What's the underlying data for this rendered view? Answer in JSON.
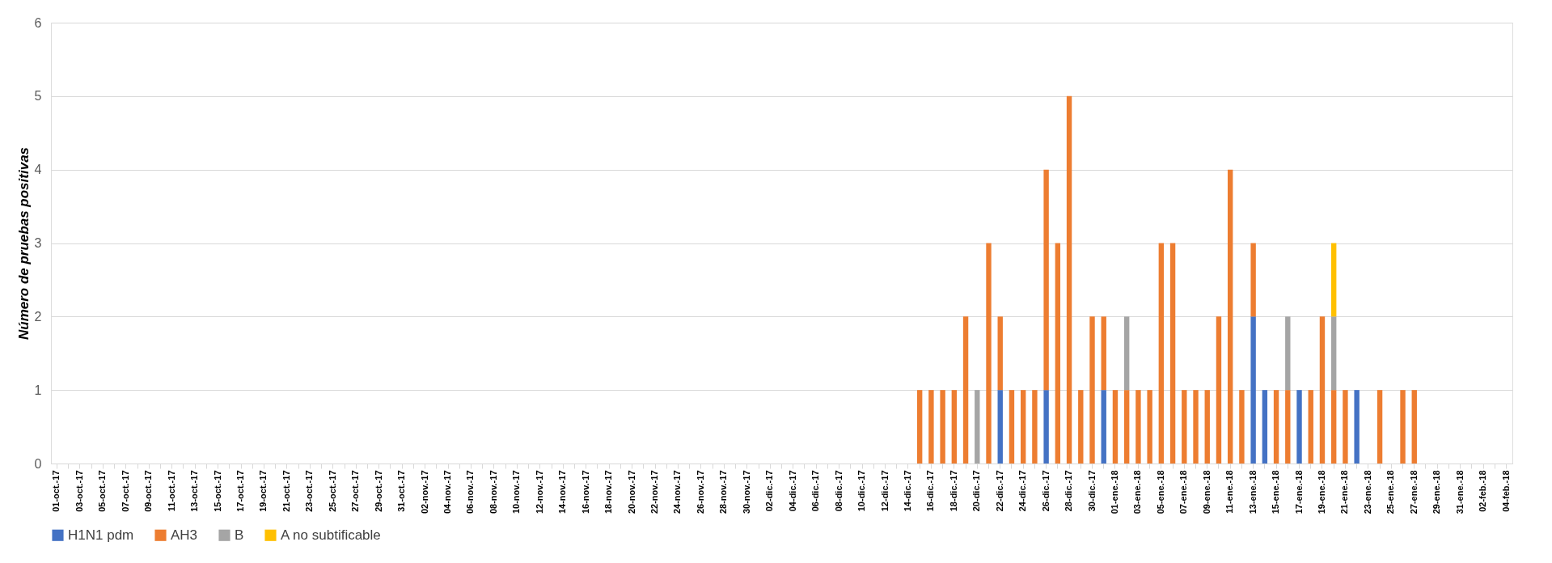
{
  "chart_data": {
    "type": "bar",
    "stacked": true,
    "ylabel": "Número de pruebas positivas",
    "categories": [
      "01-oct.-17",
      null,
      "03-oct.-17",
      null,
      "05-oct.-17",
      null,
      "07-oct.-17",
      null,
      "09-oct.-17",
      null,
      "11-oct.-17",
      null,
      "13-oct.-17",
      null,
      "15-oct.-17",
      null,
      "17-oct.-17",
      null,
      "19-oct.-17",
      null,
      "21-oct.-17",
      null,
      "23-oct.-17",
      null,
      "25-oct.-17",
      null,
      "27-oct.-17",
      null,
      "29-oct.-17",
      null,
      "31-oct.-17",
      null,
      "02-nov.-17",
      null,
      "04-nov.-17",
      null,
      "06-nov.-17",
      null,
      "08-nov.-17",
      null,
      "10-nov.-17",
      null,
      "12-nov.-17",
      null,
      "14-nov.-17",
      null,
      "16-nov.-17",
      null,
      "18-nov.-17",
      null,
      "20-nov.-17",
      null,
      "22-nov.-17",
      null,
      "24-nov.-17",
      null,
      "26-nov.-17",
      null,
      "28-nov.-17",
      null,
      "30-nov.-17",
      null,
      "02-dic.-17",
      null,
      "04-dic.-17",
      null,
      "06-dic.-17",
      null,
      "08-dic.-17",
      null,
      "10-dic.-17",
      null,
      "12-dic.-17",
      null,
      "14-dic.-17",
      null,
      "16-dic.-17",
      null,
      "18-dic.-17",
      null,
      "20-dic.-17",
      null,
      "22-dic.-17",
      null,
      "24-dic.-17",
      null,
      "26-dic.-17",
      null,
      "28-dic.-17",
      null,
      "30-dic.-17",
      null,
      "01-ene.-18",
      null,
      "03-ene.-18",
      null,
      "05-ene.-18",
      null,
      "07-ene.-18",
      null,
      "09-ene.-18",
      null,
      "11-ene.-18",
      null,
      "13-ene.-18",
      null,
      "15-ene.-18",
      null,
      "17-ene.-18",
      null,
      "19-ene.-18",
      null,
      "21-ene.-18",
      null,
      "23-ene.-18",
      null,
      "25-ene.-18",
      null,
      "27-ene.-18",
      null,
      "29-ene.-18",
      null,
      "31-ene.-18",
      null,
      "02-feb.-18",
      null,
      "04-feb.-18"
    ],
    "series": [
      {
        "name": "H1N1 pdm",
        "color": "#4472c4",
        "values": [
          0,
          0,
          0,
          0,
          0,
          0,
          0,
          0,
          0,
          0,
          0,
          0,
          0,
          0,
          0,
          0,
          0,
          0,
          0,
          0,
          0,
          0,
          0,
          0,
          0,
          0,
          0,
          0,
          0,
          0,
          0,
          0,
          0,
          0,
          0,
          0,
          0,
          0,
          0,
          0,
          0,
          0,
          0,
          0,
          0,
          0,
          0,
          0,
          0,
          0,
          0,
          0,
          0,
          0,
          0,
          0,
          0,
          0,
          0,
          0,
          0,
          0,
          0,
          0,
          0,
          0,
          0,
          0,
          0,
          0,
          0,
          0,
          0,
          0,
          0,
          0,
          0,
          0,
          0,
          0,
          0,
          0,
          1,
          0,
          0,
          0,
          1,
          0,
          0,
          0,
          0,
          1,
          0,
          0,
          0,
          0,
          0,
          0,
          0,
          0,
          0,
          0,
          0,
          0,
          2,
          1,
          0,
          0,
          1,
          0,
          0,
          0,
          0,
          1,
          0,
          0,
          0,
          0,
          0,
          0,
          0,
          0,
          0,
          0,
          0,
          0,
          0
        ]
      },
      {
        "name": "AH3",
        "color": "#ed7d31",
        "values": [
          0,
          0,
          0,
          0,
          0,
          0,
          0,
          0,
          0,
          0,
          0,
          0,
          0,
          0,
          0,
          0,
          0,
          0,
          0,
          0,
          0,
          0,
          0,
          0,
          0,
          0,
          0,
          0,
          0,
          0,
          0,
          0,
          0,
          0,
          0,
          0,
          0,
          0,
          0,
          0,
          0,
          0,
          0,
          0,
          0,
          0,
          0,
          0,
          0,
          0,
          0,
          0,
          0,
          0,
          0,
          0,
          0,
          0,
          0,
          0,
          0,
          0,
          0,
          0,
          0,
          0,
          0,
          0,
          0,
          0,
          0,
          0,
          0,
          0,
          0,
          1,
          1,
          1,
          1,
          2,
          0,
          3,
          1,
          1,
          1,
          1,
          3,
          3,
          5,
          1,
          2,
          1,
          1,
          1,
          1,
          1,
          3,
          3,
          1,
          1,
          1,
          2,
          4,
          1,
          1,
          0,
          1,
          1,
          0,
          1,
          2,
          1,
          1,
          0,
          0,
          1,
          0,
          1,
          1,
          0,
          0,
          0,
          0,
          0,
          0,
          0,
          0
        ]
      },
      {
        "name": "B",
        "color": "#a5a5a5",
        "values": [
          0,
          0,
          0,
          0,
          0,
          0,
          0,
          0,
          0,
          0,
          0,
          0,
          0,
          0,
          0,
          0,
          0,
          0,
          0,
          0,
          0,
          0,
          0,
          0,
          0,
          0,
          0,
          0,
          0,
          0,
          0,
          0,
          0,
          0,
          0,
          0,
          0,
          0,
          0,
          0,
          0,
          0,
          0,
          0,
          0,
          0,
          0,
          0,
          0,
          0,
          0,
          0,
          0,
          0,
          0,
          0,
          0,
          0,
          0,
          0,
          0,
          0,
          0,
          0,
          0,
          0,
          0,
          0,
          0,
          0,
          0,
          0,
          0,
          0,
          0,
          0,
          0,
          0,
          0,
          0,
          1,
          0,
          0,
          0,
          0,
          0,
          0,
          0,
          0,
          0,
          0,
          0,
          0,
          1,
          0,
          0,
          0,
          0,
          0,
          0,
          0,
          0,
          0,
          0,
          0,
          0,
          0,
          1,
          0,
          0,
          0,
          1,
          0,
          0,
          0,
          0,
          0,
          0,
          0,
          0,
          0,
          0,
          0,
          0,
          0,
          0,
          0
        ]
      },
      {
        "name": "A no subtificable",
        "color": "#ffc000",
        "values": [
          0,
          0,
          0,
          0,
          0,
          0,
          0,
          0,
          0,
          0,
          0,
          0,
          0,
          0,
          0,
          0,
          0,
          0,
          0,
          0,
          0,
          0,
          0,
          0,
          0,
          0,
          0,
          0,
          0,
          0,
          0,
          0,
          0,
          0,
          0,
          0,
          0,
          0,
          0,
          0,
          0,
          0,
          0,
          0,
          0,
          0,
          0,
          0,
          0,
          0,
          0,
          0,
          0,
          0,
          0,
          0,
          0,
          0,
          0,
          0,
          0,
          0,
          0,
          0,
          0,
          0,
          0,
          0,
          0,
          0,
          0,
          0,
          0,
          0,
          0,
          0,
          0,
          0,
          0,
          0,
          0,
          0,
          0,
          0,
          0,
          0,
          0,
          0,
          0,
          0,
          0,
          0,
          0,
          0,
          0,
          0,
          0,
          0,
          0,
          0,
          0,
          0,
          0,
          0,
          0,
          0,
          0,
          0,
          0,
          0,
          0,
          1,
          0,
          0,
          0,
          0,
          0,
          0,
          0,
          0,
          0,
          0,
          0,
          0,
          0,
          0,
          0
        ]
      }
    ],
    "ylim": [
      0,
      6
    ],
    "yticks": [
      0,
      1,
      2,
      3,
      4,
      5,
      6
    ],
    "grid": "y",
    "legend": "bottom"
  }
}
